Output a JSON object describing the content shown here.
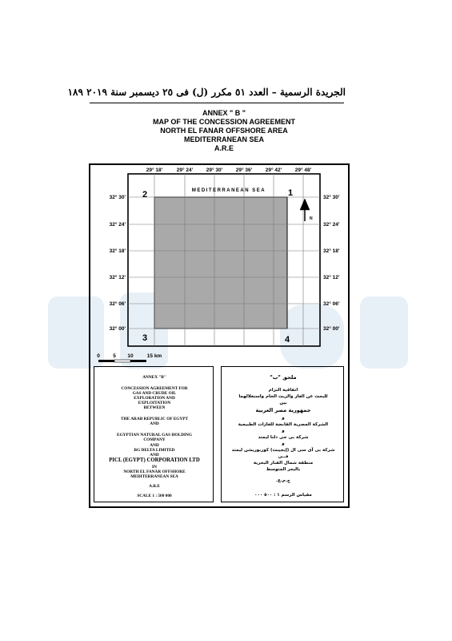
{
  "header": {
    "text": "الجريدة الرسمية – العدد ٥١ مكرر (ل) فى ٢٥ ديسمبر سنة ٢٠١٩   ١٨٩"
  },
  "titles": [
    "ANNEX \" B \"",
    "MAP OF THE CONCESSION AGREEMENT",
    "NORTH EL FANAR OFFSHORE AREA",
    "MEDITERRANEAN SEA",
    "A.R.E"
  ],
  "map": {
    "sea_label": "MEDITERRANEAN SEA",
    "longitudes": [
      "29° 18'",
      "29° 24'",
      "29° 30'",
      "29° 36'",
      "29° 42'",
      "29° 48'"
    ],
    "latitudes": [
      "32° 30'",
      "32° 24'",
      "32° 18'",
      "32° 12'",
      "32° 06'",
      "32° 00'"
    ],
    "corners": [
      "1",
      "2",
      "3",
      "4"
    ],
    "north_label": "N",
    "scale_ticks": [
      "0",
      "5",
      "10",
      "15 km"
    ],
    "colors": {
      "concession_fill": "#a9a9a9",
      "grid_line": "#777777",
      "frame": "#000000"
    }
  },
  "left_box": {
    "lines": [
      "ANNEX \"B\"",
      "CONCESSION AGREEMENT FOR",
      "GAS AND CRUDE OIL",
      "EXPLORATION AND",
      "EXPLOITATION",
      "BETWEEN",
      "THE ARAB REPUBLIC OF EGYPT",
      "AND",
      "EGYPTIAN NATURAL GAS HOLDING",
      "COMPANY",
      "AND",
      "BG DELTA LIMITED",
      "AND",
      "PICL (EGYPT) CORPORATION LTD",
      "IN",
      "NORTH EL FANAR OFFSHORE",
      "MEDITERRANEAN SEA",
      "A.R.E",
      "SCALE   1 : 500 000"
    ]
  },
  "right_box": {
    "lines": [
      "ملحق \"ب\"",
      "اتفاقية التزام",
      "للبحث عن الغاز والزيت الخام واستغلالهما",
      "بين",
      "جمهورية مصر العربية",
      "و",
      "الشركة المصرية القابضة للغازات الطبيعية",
      "و",
      "شركة بى جى دلتا ليمتد",
      "و",
      "شركة بى آى سى ال (إيجيبت) كوربوريشن ليمتد",
      "فــى",
      "منطقة شمال الفنار البحرية",
      "بالبحر المتوسط",
      "ج.م.ع.",
      "مقياس الرسم ١ : ٥٠٠ ٠٠٠"
    ]
  }
}
